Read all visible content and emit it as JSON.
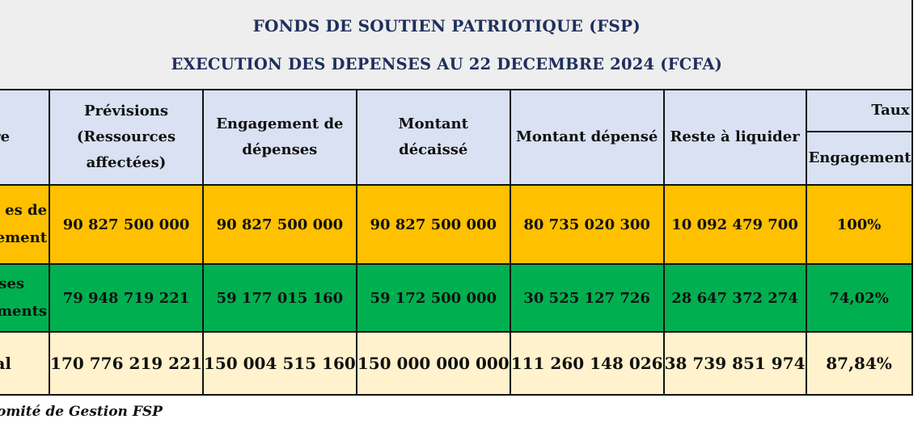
{
  "title": {
    "line1": "FONDS DE SOUTIEN PATRIOTIQUE (FSP)",
    "line2": "EXECUTION DES DEPENSES AU 22 DECEMBRE 2024 (FCFA)"
  },
  "headers": {
    "nature": "ure",
    "previsions": "Prévisions (Ressources affectées)",
    "engagement": "Engagement de dépenses",
    "decaisse": "Montant décaissé",
    "depense": "Montant dépensé",
    "reste": "Reste à liquider",
    "taux": "Taux",
    "taux_sub": "Engagement"
  },
  "rows": [
    {
      "label_line1": "es de",
      "label_line2": "nement",
      "previsions": "90 827 500 000",
      "engagement": "90 827 500 000",
      "decaisse": "90 827 500 000",
      "depense": "80 735 020 300",
      "reste": "10 092 479 700",
      "taux": "100%"
    },
    {
      "label_line1": "nses",
      "label_line2": "ements",
      "previsions": "79 948 719 221",
      "engagement": "59 177 015 160",
      "decaisse": "59 172 500 000",
      "depense": "30 525 127 726",
      "reste": "28 647 372 274",
      "taux": "74,02%"
    },
    {
      "label_line1": "al",
      "label_line2": "",
      "previsions": "170 776 219 221",
      "engagement": "150 004 515 160",
      "decaisse": "150 000 000 000",
      "depense": "111 260 148 026",
      "reste": "38 739 851 974",
      "taux": "87,84%"
    }
  ],
  "footer": "omité de Gestion FSP",
  "colors": {
    "title_bg": "#eeeeee",
    "title_text": "#1f2f5c",
    "header_bg": "#d9e1f2",
    "fonctionnement_bg": "#ffc000",
    "investissement_bg": "#00b050",
    "total_bg": "#fff2cc"
  }
}
